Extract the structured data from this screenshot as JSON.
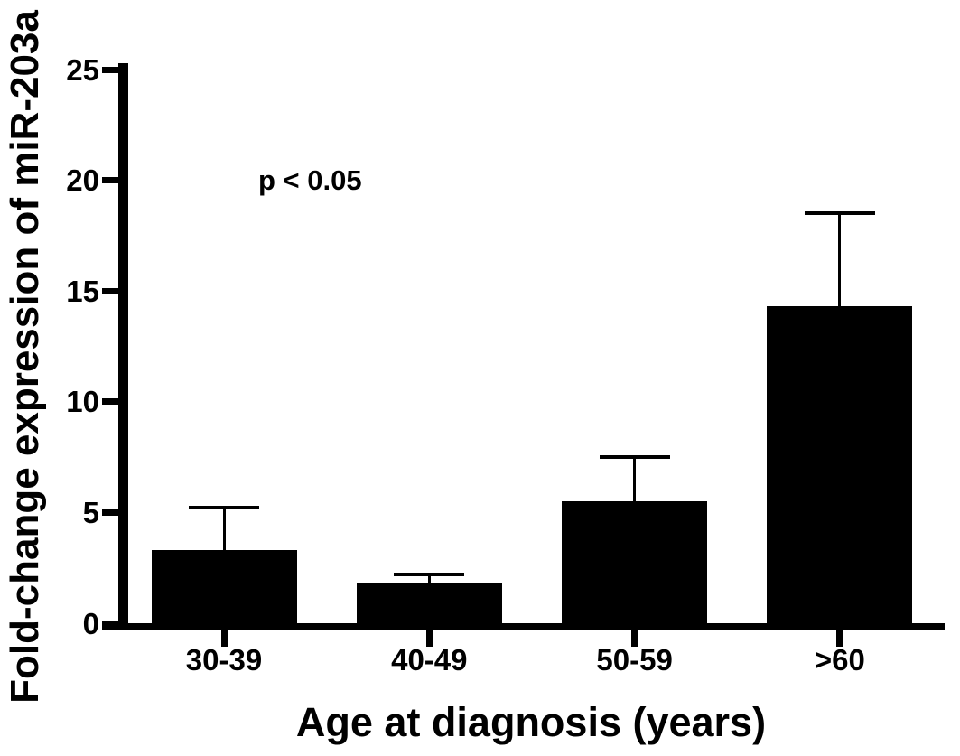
{
  "chart_data": {
    "type": "bar",
    "title": "",
    "xlabel": "Age at diagnosis (years)",
    "ylabel": "Fold-change expression of miR-203a",
    "categories": [
      "30-39",
      "40-49",
      "50-59",
      ">60"
    ],
    "values": [
      3.3,
      1.8,
      5.5,
      14.3
    ],
    "errors_plus": [
      1.9,
      0.4,
      2.0,
      4.2
    ],
    "annotation": "p < 0.05",
    "y_ticks": [
      0,
      5,
      10,
      15,
      20,
      25
    ],
    "ylim": [
      0,
      25
    ],
    "bar_color": "#000000",
    "background_color": "#ffffff",
    "grid": false,
    "legend": null
  }
}
